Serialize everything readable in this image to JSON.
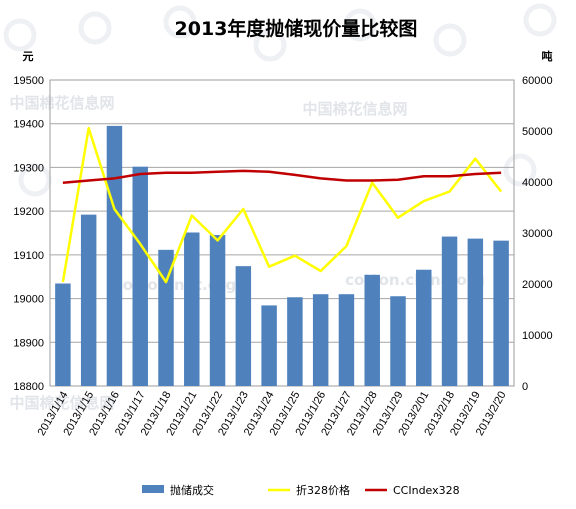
{
  "chart_data": {
    "type": "bar",
    "title": "2013年度抛储现价量比较图",
    "y_left_unit": "元",
    "y_right_unit": "吨",
    "categories": [
      "2013/1/14",
      "2013/1/15",
      "2013/1/16",
      "2013/1/17",
      "2013/1/18",
      "2013/1/21",
      "2013/1/22",
      "2013/1/23",
      "2013/1/24",
      "2013/1/25",
      "2013/1/26",
      "2013/1/27",
      "2013/1/28",
      "2013/1/29",
      "2013/2/01",
      "2013/2/18",
      "2013/2/19",
      "2013/2/20"
    ],
    "y_left": {
      "min": 18800,
      "max": 19500,
      "step": 100,
      "ticks": [
        "18800",
        "18900",
        "19000",
        "19100",
        "19200",
        "19300",
        "19400",
        "19500"
      ]
    },
    "y_right": {
      "min": 0,
      "max": 60000,
      "step": 10000,
      "ticks": [
        "0",
        "10000",
        "20000",
        "30000",
        "40000",
        "50000",
        "60000"
      ]
    },
    "series": [
      {
        "name": "抛储成交",
        "kind": "bar",
        "axis": "right",
        "color": "#4f81bd",
        "values": [
          20100,
          33600,
          51000,
          43000,
          26700,
          30100,
          29600,
          23500,
          15800,
          17400,
          18000,
          18000,
          21800,
          17600,
          22800,
          29300,
          28900,
          28500
        ]
      },
      {
        "name": "折328价格",
        "kind": "line",
        "axis": "left",
        "color": "#ffff00",
        "values": [
          19038,
          19390,
          19205,
          19125,
          19038,
          19190,
          19133,
          19205,
          19073,
          19098,
          19063,
          19120,
          19265,
          19185,
          19223,
          19245,
          19320,
          19245
        ]
      },
      {
        "name": "CCIndex328",
        "kind": "line",
        "axis": "left",
        "color": "#c00000",
        "values": [
          19265,
          19270,
          19275,
          19285,
          19288,
          19288,
          19290,
          19292,
          19290,
          19283,
          19275,
          19270,
          19270,
          19272,
          19280,
          19280,
          19285,
          19288
        ]
      }
    ],
    "grid": true,
    "legend_position": "bottom"
  },
  "watermarks": [
    "中国棉花信息网",
    "中国棉花信息网",
    "cotton.net.org",
    "cotton.china.org",
    "中国棉花信息网"
  ]
}
